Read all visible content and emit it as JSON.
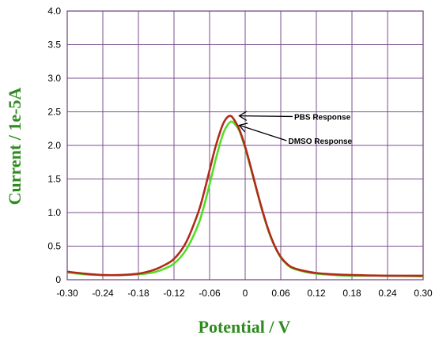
{
  "chart_data": {
    "type": "line",
    "xlabel": "Potential / V",
    "ylabel": "Current / 1e-5A",
    "xlim": [
      -0.3,
      0.3
    ],
    "ylim": [
      0,
      4.0
    ],
    "x_ticks": [
      "-0.30",
      "-0.24",
      "-0.18",
      "-0.12",
      "-0.06",
      "0",
      "0.06",
      "0.12",
      "0.18",
      "0.24",
      "0.30"
    ],
    "y_ticks": [
      "0",
      "0.5",
      "1.0",
      "1.5",
      "2.0",
      "2.5",
      "3.0",
      "3.5",
      "4.0"
    ],
    "grid": true,
    "axis_title_color": "#2e8b1e",
    "grid_color": "#7b4f8f",
    "series": [
      {
        "name": "PBS Response",
        "color": "#b22a1a",
        "x": [
          -0.3,
          -0.27,
          -0.24,
          -0.21,
          -0.18,
          -0.16,
          -0.15,
          -0.14,
          -0.12,
          -0.1,
          -0.08,
          -0.07,
          -0.06,
          -0.05,
          -0.04,
          -0.035,
          -0.03,
          -0.025,
          -0.02,
          -0.01,
          0.0,
          0.01,
          0.02,
          0.03,
          0.04,
          0.05,
          0.06,
          0.07,
          0.08,
          0.1,
          0.12,
          0.15,
          0.18,
          0.24,
          0.3
        ],
        "y": [
          0.12,
          0.09,
          0.07,
          0.07,
          0.09,
          0.13,
          0.16,
          0.2,
          0.31,
          0.55,
          0.98,
          1.28,
          1.63,
          1.98,
          2.26,
          2.36,
          2.42,
          2.44,
          2.4,
          2.24,
          1.98,
          1.66,
          1.32,
          1.0,
          0.72,
          0.5,
          0.34,
          0.24,
          0.18,
          0.13,
          0.1,
          0.08,
          0.07,
          0.06,
          0.06
        ]
      },
      {
        "name": "DMSO Response",
        "color": "#55dd2a",
        "x": [
          -0.3,
          -0.27,
          -0.24,
          -0.21,
          -0.18,
          -0.16,
          -0.15,
          -0.14,
          -0.12,
          -0.1,
          -0.08,
          -0.07,
          -0.06,
          -0.05,
          -0.04,
          -0.035,
          -0.03,
          -0.025,
          -0.02,
          -0.01,
          0.0,
          0.01,
          0.02,
          0.03,
          0.04,
          0.05,
          0.06,
          0.07,
          0.08,
          0.1,
          0.12,
          0.15,
          0.18,
          0.24,
          0.3
        ],
        "y": [
          0.11,
          0.08,
          0.07,
          0.07,
          0.08,
          0.1,
          0.12,
          0.15,
          0.24,
          0.44,
          0.8,
          1.08,
          1.42,
          1.78,
          2.1,
          2.22,
          2.3,
          2.35,
          2.34,
          2.22,
          1.96,
          1.64,
          1.31,
          0.99,
          0.71,
          0.49,
          0.33,
          0.23,
          0.17,
          0.12,
          0.09,
          0.07,
          0.06,
          0.06,
          0.05
        ]
      }
    ],
    "annotations": [
      {
        "text": "PBS Response",
        "x": -0.01,
        "y": 2.44,
        "label_x": 0.08,
        "label_y": 2.43
      },
      {
        "text": "DMSO Response",
        "x": -0.01,
        "y": 2.3,
        "label_x": 0.07,
        "label_y": 2.07
      }
    ]
  }
}
